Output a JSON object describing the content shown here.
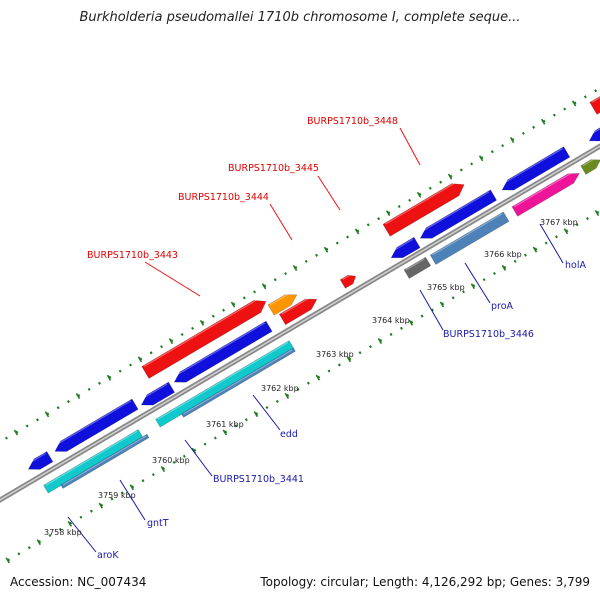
{
  "title": "Burkholderia pseudomallei 1710b chromosome I, complete seque...",
  "accession": "Accession: NC_007434",
  "summary": "Topology: circular; Length: 4,126,292 bp; Genes: 3,799",
  "ticks": [
    "3758 kbp",
    "3759 kbp",
    "3760 kbp",
    "3761 kbp",
    "3762 kbp",
    "3763 kbp",
    "3764 kbp",
    "3765 kbp",
    "3766 kbp",
    "3767 kbp"
  ],
  "red_labels": [
    "BURPS1710b_3443",
    "BURPS1710b_3444",
    "BURPS1710b_3445",
    "BURPS1710b_3448"
  ],
  "blue_labels": [
    "aroK",
    "gntT",
    "BURPS1710b_3441",
    "edd",
    "BURPS1710b_3446",
    "proA",
    "holA"
  ],
  "colors": {
    "red": "#ee1111",
    "blue": "#1010dd",
    "cyan": "#11c8cc",
    "steel": "#4c82b8",
    "orange": "#ff9500",
    "magenta": "#ee1499",
    "olive": "#6a8a20",
    "gray": "#666666",
    "pink": "#ffaab8",
    "dots": "#1d7d1d"
  }
}
